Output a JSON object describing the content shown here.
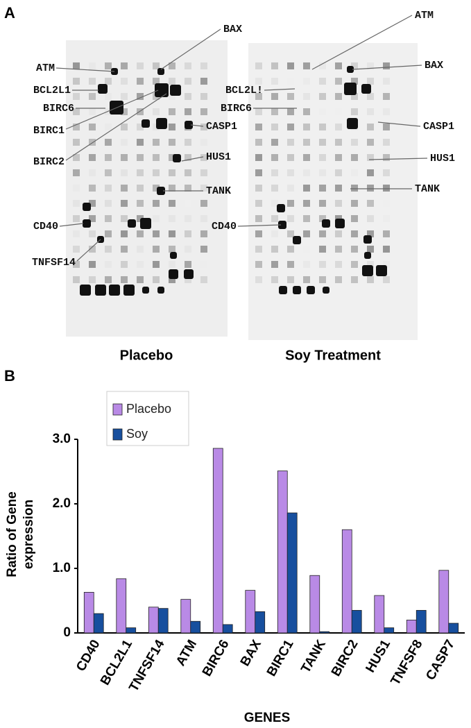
{
  "panel_a": {
    "label": "A",
    "placebo": {
      "caption": "Placebo",
      "genes": [
        "ATM",
        "BCL2L1",
        "BIRC6",
        "BIRC1",
        "BIRC2",
        "BAX",
        "CASP1",
        "HUS1",
        "TANK",
        "CD40",
        "TNFSF14"
      ]
    },
    "soy": {
      "caption": "Soy Treatment",
      "genes": [
        "ATM",
        "BAX",
        "BCL2L!",
        "BIRC6",
        "CASP1",
        "HUS1",
        "TANK",
        "CD40"
      ]
    }
  },
  "chart_data": {
    "type": "bar",
    "panel_label": "B",
    "xlabel": "GENES",
    "ylabel": [
      "Ratio of Gene",
      "expression"
    ],
    "categories": [
      "CD40",
      "BCL2L1",
      "TNFSF14",
      "ATM",
      "BIRC6",
      "BAX",
      "BIRC1",
      "TANK",
      "BIRC2",
      "HUS1",
      "TNFSF8",
      "CASP7"
    ],
    "series": [
      {
        "name": "Placebo",
        "color": "#b98ae6",
        "values": [
          0.63,
          0.84,
          0.4,
          0.52,
          2.86,
          0.66,
          2.51,
          0.89,
          1.6,
          0.58,
          0.2,
          0.97
        ]
      },
      {
        "name": "Soy",
        "color": "#174f9e",
        "values": [
          0.3,
          0.08,
          0.38,
          0.18,
          0.13,
          0.33,
          1.86,
          0.02,
          0.35,
          0.08,
          0.35,
          0.15
        ]
      }
    ],
    "ylim": [
      0,
      3.0
    ],
    "yticks": [
      0,
      {
        "value": 1,
        "label": "1.0"
      },
      {
        "value": 2,
        "label": "2.0"
      },
      {
        "value": 3,
        "label": "3.0"
      }
    ],
    "legend": "top-left",
    "grid": false
  }
}
